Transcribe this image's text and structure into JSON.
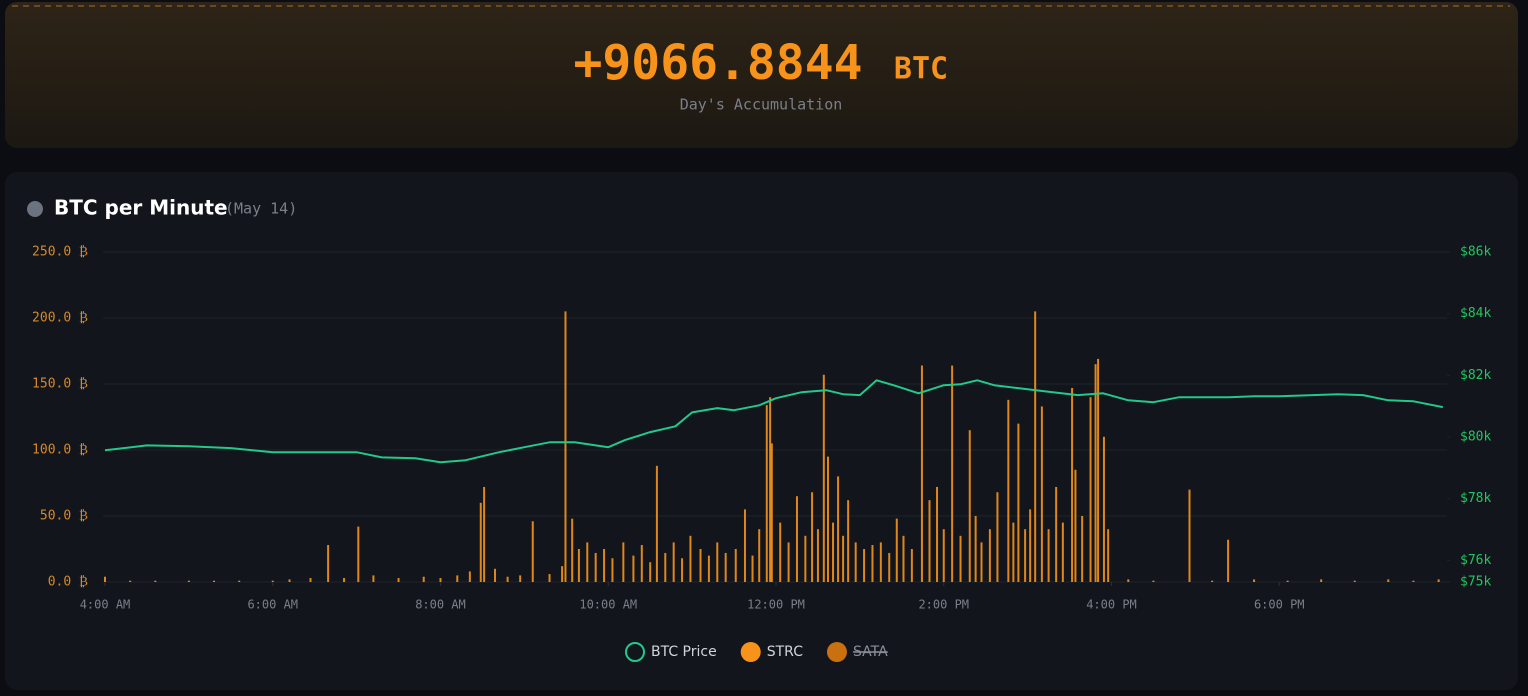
{
  "header": {
    "value": "+9066.8844",
    "unit": "BTC",
    "caption": "Day's Accumulation"
  },
  "chart_data": {
    "type": "combo",
    "title": "BTC per Minute",
    "subtitle": "(May 14)",
    "xlim": [
      4,
      20
    ],
    "xticks": [
      {
        "value": 4,
        "label": "4:00 AM"
      },
      {
        "value": 6,
        "label": "6:00 AM"
      },
      {
        "value": 8,
        "label": "8:00 AM"
      },
      {
        "value": 10,
        "label": "10:00 AM"
      },
      {
        "value": 12,
        "label": "12:00 PM"
      },
      {
        "value": 14,
        "label": "2:00 PM"
      },
      {
        "value": 16,
        "label": "4:00 PM"
      },
      {
        "value": 18,
        "label": "6:00 PM"
      }
    ],
    "ylim": [
      0,
      250
    ],
    "yticks": [
      {
        "value": 0,
        "label": "0.0 ₿"
      },
      {
        "value": 50,
        "label": "50.0 ₿"
      },
      {
        "value": 100,
        "label": "100.0 ₿"
      },
      {
        "value": 150,
        "label": "150.0 ₿"
      },
      {
        "value": 200,
        "label": "200.0 ₿"
      },
      {
        "value": 250,
        "label": "250.0 ₿"
      }
    ],
    "y2lim": [
      75300,
      86000
    ],
    "y2ticks": [
      {
        "value": 75300,
        "label": "$75k"
      },
      {
        "value": 76000,
        "label": "$76k"
      },
      {
        "value": 78000,
        "label": "$78k"
      },
      {
        "value": 80000,
        "label": "$80k"
      },
      {
        "value": 82000,
        "label": "$82k"
      },
      {
        "value": 84000,
        "label": "$84k"
      },
      {
        "value": 86000,
        "label": "$86k"
      }
    ],
    "grid": true,
    "series": [
      {
        "name": "BTC Price",
        "type": "line",
        "axis": "y2",
        "color": "#22c98a",
        "x": [
          4.0,
          4.5,
          5.0,
          5.5,
          6.0,
          6.5,
          7.0,
          7.3,
          7.7,
          8.0,
          8.3,
          8.7,
          9.0,
          9.3,
          9.6,
          10.0,
          10.2,
          10.5,
          10.8,
          11.0,
          11.3,
          11.5,
          11.8,
          12.0,
          12.3,
          12.6,
          12.8,
          13.0,
          13.2,
          13.4,
          13.7,
          14.0,
          14.2,
          14.4,
          14.6,
          14.9,
          15.3,
          15.6,
          15.9,
          16.2,
          16.5,
          16.8,
          17.1,
          17.4,
          17.7,
          18.0,
          18.4,
          18.7,
          19.0,
          19.3,
          19.6,
          19.95
        ],
        "values": [
          79570,
          79730,
          79700,
          79640,
          79510,
          79510,
          79510,
          79340,
          79310,
          79180,
          79250,
          79510,
          79670,
          79830,
          79830,
          79670,
          79900,
          80160,
          80350,
          80800,
          80940,
          80870,
          81030,
          81260,
          81450,
          81520,
          81390,
          81360,
          81840,
          81680,
          81420,
          81680,
          81710,
          81840,
          81680,
          81580,
          81450,
          81360,
          81420,
          81190,
          81130,
          81290,
          81290,
          81290,
          81320,
          81320,
          81360,
          81390,
          81360,
          81190,
          81160,
          80970
        ]
      },
      {
        "name": "STRC",
        "type": "bar",
        "axis": "y",
        "color": "#f7931a",
        "x": [
          4.0,
          4.3,
          4.6,
          5.0,
          5.3,
          5.6,
          6.0,
          6.2,
          6.45,
          6.66,
          6.85,
          7.02,
          7.2,
          7.5,
          7.8,
          8.0,
          8.2,
          8.35,
          8.48,
          8.52,
          8.65,
          8.8,
          8.95,
          9.1,
          9.3,
          9.45,
          9.49,
          9.57,
          9.65,
          9.75,
          9.85,
          9.95,
          10.05,
          10.18,
          10.3,
          10.4,
          10.5,
          10.58,
          10.68,
          10.78,
          10.88,
          10.98,
          11.1,
          11.2,
          11.3,
          11.4,
          11.52,
          11.63,
          11.72,
          11.8,
          11.89,
          11.93,
          11.95,
          12.05,
          12.15,
          12.25,
          12.35,
          12.43,
          12.5,
          12.57,
          12.62,
          12.68,
          12.74,
          12.8,
          12.86,
          12.95,
          13.05,
          13.15,
          13.25,
          13.35,
          13.44,
          13.52,
          13.62,
          13.74,
          13.83,
          13.92,
          14.0,
          14.1,
          14.2,
          14.31,
          14.38,
          14.45,
          14.55,
          14.64,
          14.77,
          14.83,
          14.89,
          14.97,
          15.03,
          15.09,
          15.17,
          15.25,
          15.34,
          15.42,
          15.53,
          15.57,
          15.65,
          15.75,
          15.81,
          15.84,
          15.91,
          15.96,
          16.2,
          16.5,
          16.93,
          17.2,
          17.39,
          17.7,
          18.1,
          18.5,
          18.9,
          19.3,
          19.6,
          19.9
        ],
        "values": [
          4,
          1,
          1,
          1,
          1,
          1,
          1,
          2,
          3,
          28,
          3,
          42,
          5,
          3,
          4,
          3,
          5,
          8,
          60,
          72,
          10,
          4,
          5,
          46,
          6,
          12,
          205,
          48,
          25,
          30,
          22,
          25,
          18,
          30,
          20,
          28,
          15,
          88,
          22,
          30,
          18,
          35,
          25,
          20,
          30,
          22,
          25,
          55,
          20,
          40,
          134,
          140,
          105,
          45,
          30,
          65,
          35,
          68,
          40,
          157,
          95,
          45,
          80,
          35,
          62,
          30,
          25,
          28,
          30,
          22,
          48,
          35,
          25,
          164,
          62,
          72,
          40,
          164,
          35,
          115,
          50,
          30,
          40,
          68,
          138,
          45,
          120,
          40,
          55,
          205,
          133,
          40,
          72,
          45,
          147,
          85,
          50,
          140,
          165,
          169,
          110,
          40,
          2,
          1,
          70,
          1,
          32,
          2,
          1,
          2,
          1,
          2,
          1,
          2
        ]
      },
      {
        "name": "SATA",
        "type": "bar",
        "axis": "y",
        "color": "#c9700f",
        "hidden": true,
        "x": [],
        "values": []
      }
    ]
  }
}
